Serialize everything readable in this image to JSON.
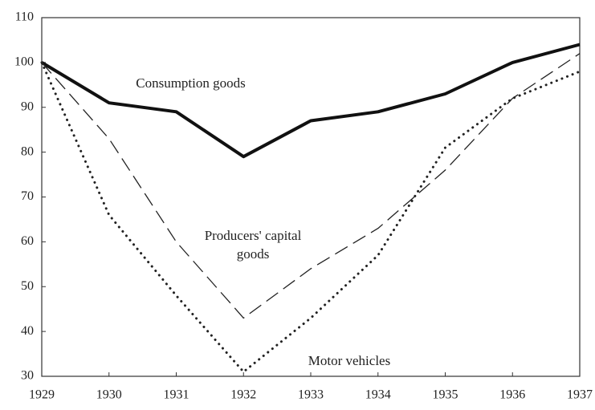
{
  "chart_data": {
    "type": "line",
    "x": [
      1929,
      1930,
      1931,
      1932,
      1933,
      1934,
      1935,
      1936,
      1937
    ],
    "xlim": [
      1929,
      1937
    ],
    "xticks": [
      1929,
      1930,
      1931,
      1932,
      1933,
      1934,
      1935,
      1936,
      1937
    ],
    "ylim": [
      30,
      110
    ],
    "yticks": [
      30,
      40,
      50,
      60,
      70,
      80,
      90,
      100,
      110
    ],
    "grid": false,
    "series": [
      {
        "name": "Consumption goods",
        "color": "#111111",
        "style": "solid",
        "values": [
          100,
          91,
          89,
          79,
          87,
          89,
          93,
          100,
          104
        ]
      },
      {
        "name": "Producers' capital goods",
        "color": "#222222",
        "style": "dashed",
        "values": [
          100,
          83,
          60,
          43,
          54,
          63,
          76,
          92,
          102
        ]
      },
      {
        "name": "Motor vehicles",
        "color": "#222222",
        "style": "dotted",
        "values": [
          100,
          66,
          48,
          31,
          43,
          57,
          81,
          92,
          98
        ]
      }
    ]
  }
}
